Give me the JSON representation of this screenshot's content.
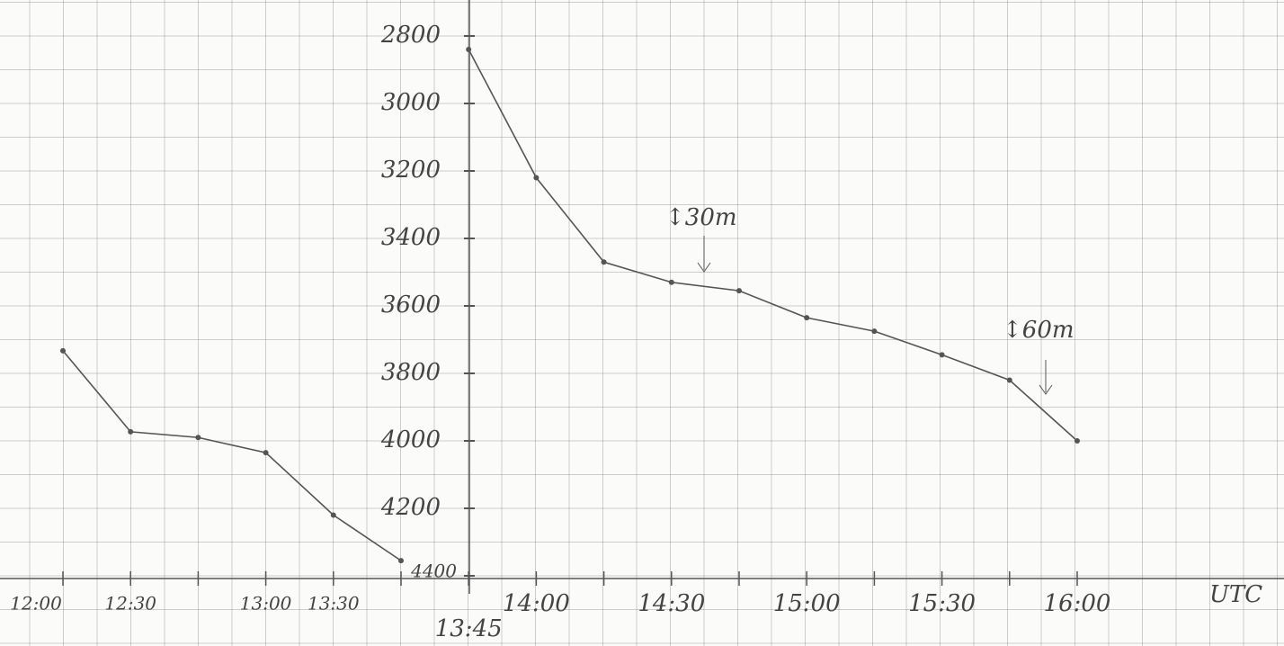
{
  "chart_data": {
    "type": "line",
    "categories": [
      "12:00",
      "12:30",
      null,
      "13:00",
      "13:30",
      null,
      "13:45",
      "14:00",
      null,
      "14:30",
      null,
      "15:00",
      null,
      "15:30",
      null,
      "16:00"
    ],
    "series": [
      {
        "color": "#555555",
        "values": [
          3733,
          3973,
          3990,
          4035,
          4220,
          4355,
          null,
          null,
          null,
          null,
          null,
          null,
          null,
          null,
          null,
          null
        ]
      },
      {
        "color": "#555555",
        "values": [
          null,
          null,
          null,
          null,
          null,
          null,
          2840,
          3220,
          3470,
          3530,
          3555,
          3635,
          3675,
          3745,
          3820,
          4000
        ]
      }
    ],
    "ylim": [
      2800,
      4400
    ],
    "yticks": [
      2800,
      3000,
      3200,
      3400,
      3600,
      3800,
      4000,
      4200,
      4400
    ],
    "y_inverted": true,
    "x_unit": "UTC",
    "annotations": [
      "↕30m",
      "↕60m"
    ]
  }
}
